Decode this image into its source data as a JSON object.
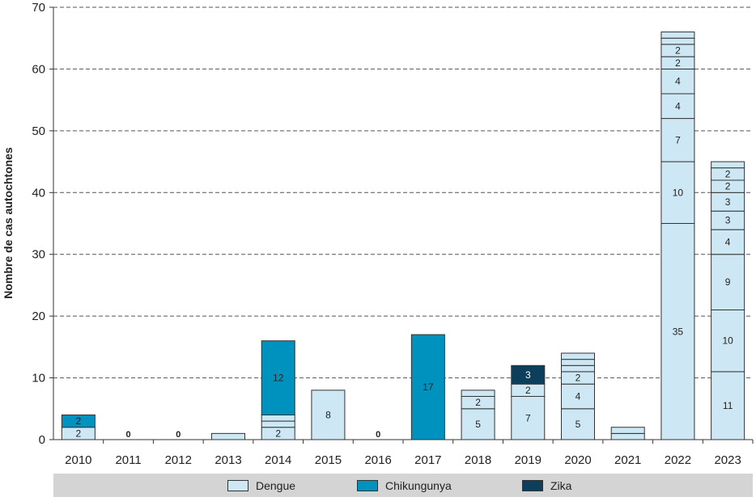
{
  "chart_data": {
    "type": "bar",
    "stacked": true,
    "ylabel": "Nombre de cas autochtones",
    "xlabel": "",
    "ylim": [
      0,
      70
    ],
    "yticks": [
      0,
      10,
      20,
      30,
      40,
      50,
      60,
      70
    ],
    "grid": "horizontal-dashed",
    "legend_position": "bottom",
    "categories": [
      "2010",
      "2011",
      "2012",
      "2013",
      "2014",
      "2015",
      "2016",
      "2017",
      "2018",
      "2019",
      "2020",
      "2021",
      "2022",
      "2023"
    ],
    "series": [
      {
        "name": "Dengue",
        "color": "#cde8f4"
      },
      {
        "name": "Chikungunya",
        "color": "#0092bf"
      },
      {
        "name": "Zika",
        "color": "#0d3f5c"
      }
    ],
    "bars": [
      {
        "year": "2010",
        "segments": [
          {
            "series": "Dengue",
            "value": 2,
            "label": "2"
          },
          {
            "series": "Chikungunya",
            "value": 2,
            "label": "2"
          }
        ]
      },
      {
        "year": "2011",
        "segments": [],
        "zero_label": "0"
      },
      {
        "year": "2012",
        "segments": [],
        "zero_label": "0"
      },
      {
        "year": "2013",
        "segments": [
          {
            "series": "Dengue",
            "value": 1
          }
        ]
      },
      {
        "year": "2014",
        "segments": [
          {
            "series": "Dengue",
            "value": 2,
            "label": "2"
          },
          {
            "series": "Dengue",
            "value": 1
          },
          {
            "series": "Dengue",
            "value": 1
          },
          {
            "series": "Chikungunya",
            "value": 12,
            "label": "12"
          }
        ]
      },
      {
        "year": "2015",
        "segments": [
          {
            "series": "Dengue",
            "value": 8,
            "label": "8"
          }
        ]
      },
      {
        "year": "2016",
        "segments": [],
        "zero_label": "0"
      },
      {
        "year": "2017",
        "segments": [
          {
            "series": "Chikungunya",
            "value": 17,
            "label": "17"
          }
        ]
      },
      {
        "year": "2018",
        "segments": [
          {
            "series": "Dengue",
            "value": 5,
            "label": "5"
          },
          {
            "series": "Dengue",
            "value": 2,
            "label": "2"
          },
          {
            "series": "Dengue",
            "value": 1
          }
        ]
      },
      {
        "year": "2019",
        "segments": [
          {
            "series": "Dengue",
            "value": 7,
            "label": "7"
          },
          {
            "series": "Dengue",
            "value": 2,
            "label": "2"
          },
          {
            "series": "Zika",
            "value": 3,
            "label": "3"
          }
        ]
      },
      {
        "year": "2020",
        "segments": [
          {
            "series": "Dengue",
            "value": 5,
            "label": "5"
          },
          {
            "series": "Dengue",
            "value": 4,
            "label": "4"
          },
          {
            "series": "Dengue",
            "value": 2,
            "label": "2"
          },
          {
            "series": "Dengue",
            "value": 1
          },
          {
            "series": "Dengue",
            "value": 1
          },
          {
            "series": "Dengue",
            "value": 1
          }
        ]
      },
      {
        "year": "2021",
        "segments": [
          {
            "series": "Dengue",
            "value": 1
          },
          {
            "series": "Dengue",
            "value": 1
          }
        ]
      },
      {
        "year": "2022",
        "segments": [
          {
            "series": "Dengue",
            "value": 35,
            "label": "35"
          },
          {
            "series": "Dengue",
            "value": 10,
            "label": "10"
          },
          {
            "series": "Dengue",
            "value": 7,
            "label": "7"
          },
          {
            "series": "Dengue",
            "value": 4,
            "label": "4"
          },
          {
            "series": "Dengue",
            "value": 4,
            "label": "4"
          },
          {
            "series": "Dengue",
            "value": 2,
            "label": "2"
          },
          {
            "series": "Dengue",
            "value": 2,
            "label": "2"
          },
          {
            "series": "Dengue",
            "value": 1
          },
          {
            "series": "Dengue",
            "value": 1
          }
        ]
      },
      {
        "year": "2023",
        "segments": [
          {
            "series": "Dengue",
            "value": 11,
            "label": "11"
          },
          {
            "series": "Dengue",
            "value": 10,
            "label": "10"
          },
          {
            "series": "Dengue",
            "value": 9,
            "label": "9"
          },
          {
            "series": "Dengue",
            "value": 4,
            "label": "4"
          },
          {
            "series": "Dengue",
            "value": 3,
            "label": "3"
          },
          {
            "series": "Dengue",
            "value": 3,
            "label": "3"
          },
          {
            "series": "Dengue",
            "value": 2,
            "label": "2"
          },
          {
            "series": "Dengue",
            "value": 2,
            "label": "2"
          },
          {
            "series": "Dengue",
            "value": 1
          }
        ]
      }
    ]
  },
  "legend": {
    "dengue": "Dengue",
    "chikungunya": "Chikungunya",
    "zika": "Zika"
  }
}
